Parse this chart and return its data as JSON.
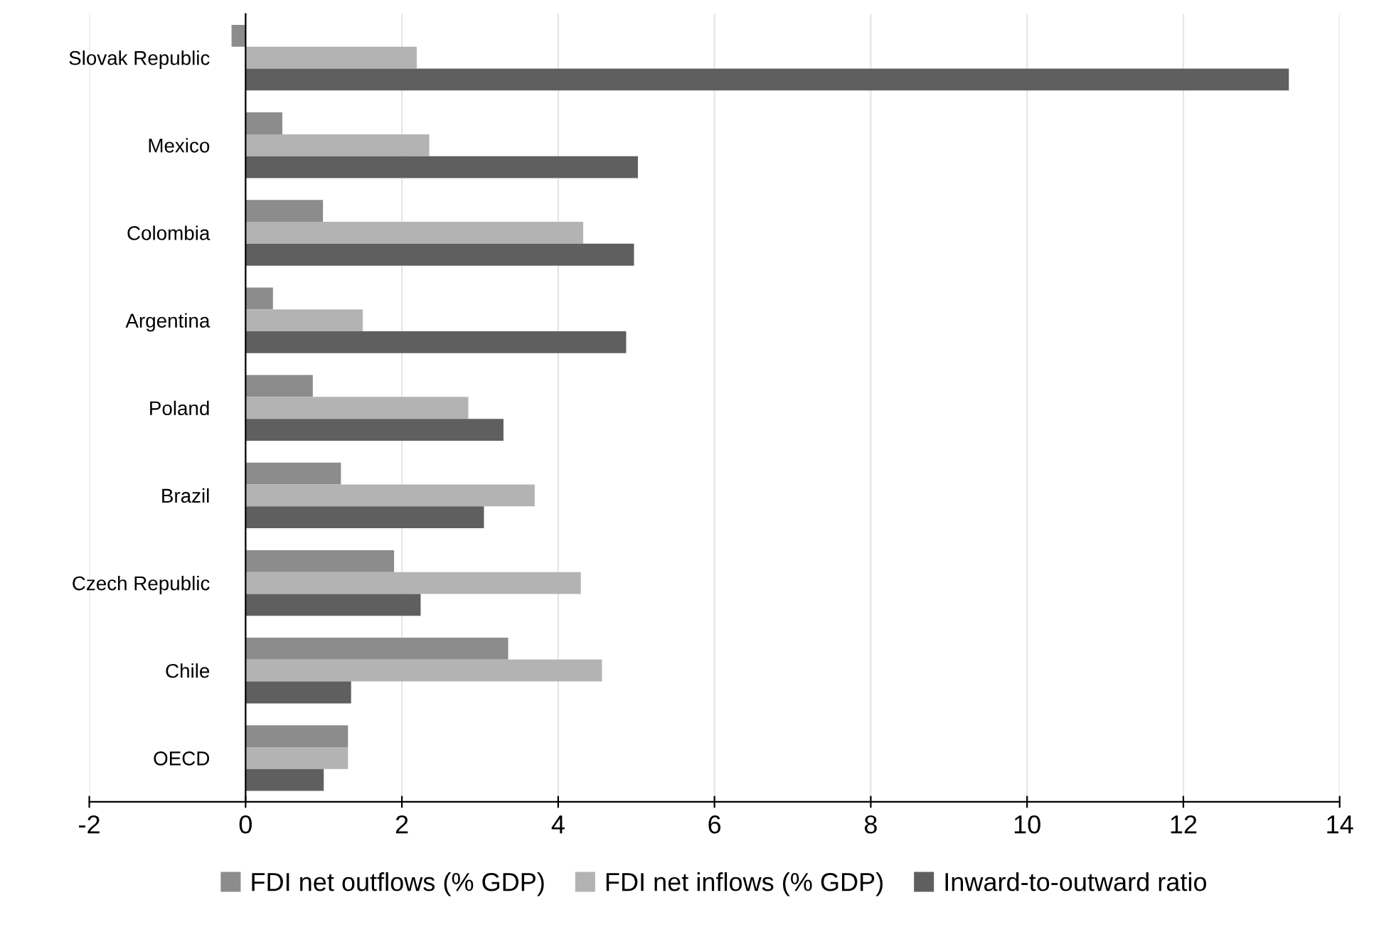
{
  "chart_data": {
    "type": "bar",
    "orientation": "horizontal",
    "categories": [
      "Slovak Republic",
      "Mexico",
      "Colombia",
      "Argentina",
      "Poland",
      "Brazil",
      "Czech Republic",
      "Chile",
      "OECD"
    ],
    "series": [
      {
        "name": "FDI net outflows (% GDP)",
        "color": "#8c8c8c",
        "values": [
          -0.18,
          0.47,
          0.99,
          0.35,
          0.86,
          1.22,
          1.9,
          3.36,
          1.31
        ]
      },
      {
        "name": "FDI net inflows (% GDP)",
        "color": "#b3b3b3",
        "values": [
          2.19,
          2.35,
          4.32,
          1.5,
          2.85,
          3.7,
          4.29,
          4.56,
          1.31
        ]
      },
      {
        "name": "Inward-to-outward ratio",
        "color": "#5f5f5f",
        "values": [
          13.35,
          5.02,
          4.97,
          4.87,
          3.3,
          3.05,
          2.24,
          1.35,
          1.0
        ]
      }
    ],
    "xlim": [
      -2,
      14
    ],
    "xticks": [
      -2,
      0,
      2,
      4,
      6,
      8,
      10,
      12,
      14
    ],
    "grid": "x",
    "legend": "bottom"
  }
}
